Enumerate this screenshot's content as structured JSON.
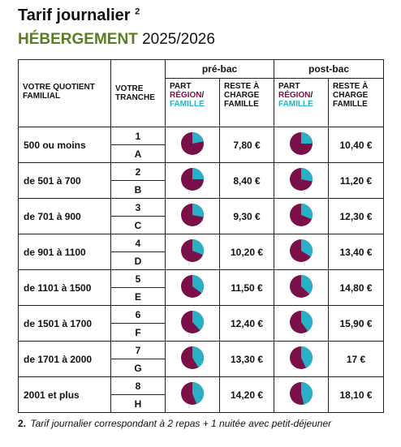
{
  "header": {
    "title": "Tarif journalier",
    "title_note": "2",
    "subtitle_strong": "HÉBERGEMENT",
    "subtitle_year": "2025/2026"
  },
  "table": {
    "col_quotient": "VOTRE QUOTIENT FAMILIAL",
    "col_tranche": "VOTRE TRANCHE",
    "pre_bac": "pré-bac",
    "post_bac": "post-bac",
    "part_label": {
      "part": "PART",
      "region": "RÉGION",
      "slash": "/",
      "famille": "FAMILLE"
    },
    "reste_label": "RESTE À CHARGE FAMILLE",
    "rows": [
      {
        "quotient": "500 ou moins",
        "tranche": [
          "1",
          "A"
        ],
        "pre_share": 22,
        "pre_reste": "7,80 €",
        "post_share": 25,
        "post_reste": "10,40 €"
      },
      {
        "quotient": "de 501 à 700",
        "tranche": [
          "2",
          "B"
        ],
        "pre_share": 25,
        "pre_reste": "8,40 €",
        "post_share": 28,
        "post_reste": "11,20 €"
      },
      {
        "quotient": "de 701 à 900",
        "tranche": [
          "3",
          "C"
        ],
        "pre_share": 28,
        "pre_reste": "9,30 €",
        "post_share": 31,
        "post_reste": "12,30 €"
      },
      {
        "quotient": "de 901 à 1100",
        "tranche": [
          "4",
          "D"
        ],
        "pre_share": 31,
        "pre_reste": "10,20 €",
        "post_share": 34,
        "post_reste": "13,40 €"
      },
      {
        "quotient": "de 1101 à 1500",
        "tranche": [
          "5",
          "E"
        ],
        "pre_share": 35,
        "pre_reste": "11,50 €",
        "post_share": 37,
        "post_reste": "14,80 €"
      },
      {
        "quotient": "de 1501 à 1700",
        "tranche": [
          "6",
          "F"
        ],
        "pre_share": 38,
        "pre_reste": "12,40 €",
        "post_share": 40,
        "post_reste": "15,90 €"
      },
      {
        "quotient": "de 1701 à 2000",
        "tranche": [
          "7",
          "G"
        ],
        "pre_share": 41,
        "pre_reste": "13,30 €",
        "post_share": 43,
        "post_reste": "17 €"
      },
      {
        "quotient": "2001 et plus",
        "tranche": [
          "8",
          "H"
        ],
        "pre_share": 44,
        "pre_reste": "14,20 €",
        "post_share": 46,
        "post_reste": "18,10 €"
      }
    ]
  },
  "footnote": {
    "number": "2.",
    "text": "Tarif journalier correspondant à 2 repas + 1 nuitée avec petit-déjeuner"
  }
}
